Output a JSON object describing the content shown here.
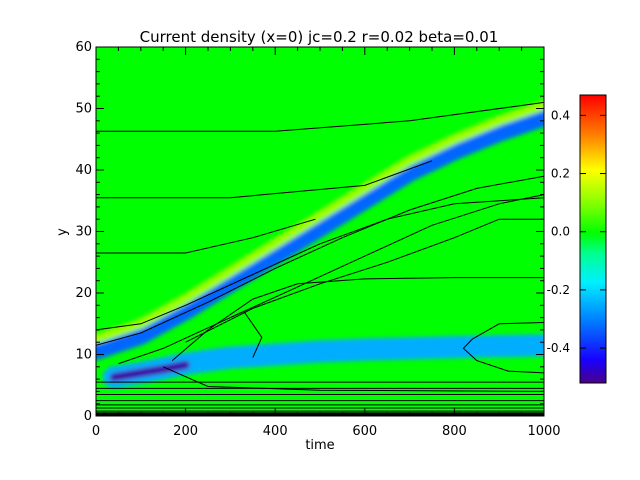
{
  "chart_data": {
    "type": "heatmap",
    "title": "Current density (x=0) jc=0.2 r=0.02 beta=0.01",
    "xlabel": "time",
    "ylabel": "y",
    "xlim": [
      0,
      1000
    ],
    "ylim": [
      0,
      60
    ],
    "x_ticks": [
      "0",
      "200",
      "400",
      "600",
      "800",
      "1000"
    ],
    "y_ticks": [
      "0",
      "10",
      "20",
      "30",
      "40",
      "50",
      "60"
    ],
    "colorbar": {
      "range": [
        -0.52,
        0.47
      ],
      "ticks": [
        "0.4",
        "0.2",
        "0.0",
        "-0.2",
        "-0.4"
      ],
      "tick_values": [
        0.4,
        0.2,
        0.0,
        -0.2,
        -0.4
      ],
      "colormap": "rainbow"
    },
    "background_value": 0.0,
    "features": [
      {
        "name": "diagonal current sheet",
        "path": [
          [
            0,
            10.5
          ],
          [
            100,
            13
          ],
          [
            200,
            17
          ],
          [
            300,
            21.5
          ],
          [
            400,
            26
          ],
          [
            500,
            30.5
          ],
          [
            600,
            35
          ],
          [
            700,
            39.5
          ],
          [
            800,
            43
          ],
          [
            900,
            46
          ],
          [
            1000,
            48.5
          ]
        ],
        "width": 1.4,
        "value": -0.33
      },
      {
        "name": "diagonal current sheet edge",
        "path": [
          [
            0,
            12.5
          ],
          [
            100,
            15
          ],
          [
            200,
            19
          ],
          [
            300,
            23.5
          ],
          [
            400,
            28
          ],
          [
            500,
            32.5
          ],
          [
            600,
            37
          ],
          [
            700,
            41.5
          ],
          [
            800,
            45
          ],
          [
            900,
            48
          ],
          [
            1000,
            50.5
          ]
        ],
        "width": 0.8,
        "value": 0.12
      },
      {
        "name": "lower current layer",
        "path": [
          [
            40,
            6.3
          ],
          [
            100,
            7
          ],
          [
            200,
            8.5
          ],
          [
            300,
            9.5
          ],
          [
            400,
            10
          ],
          [
            500,
            10.5
          ],
          [
            600,
            10.8
          ],
          [
            800,
            11.2
          ],
          [
            1000,
            11.5
          ]
        ],
        "width": 1.8,
        "value": -0.25
      },
      {
        "name": "intense lower core",
        "path": [
          [
            40,
            6.3
          ],
          [
            100,
            7
          ],
          [
            150,
            7.6
          ],
          [
            200,
            8.3
          ]
        ],
        "width": 0.7,
        "value": -0.5
      }
    ],
    "contour_levels_y_at_t1000": [
      0.3,
      0.8,
      1.3,
      1.8,
      2.5,
      3.5,
      4.5,
      5.5,
      15.2,
      22.5,
      32,
      41.5,
      50.5
    ],
    "contours": [
      [
        [
          0,
          46.3
        ],
        [
          400,
          46.3
        ],
        [
          700,
          48
        ],
        [
          1000,
          51
        ]
      ],
      [
        [
          0,
          35.5
        ],
        [
          300,
          35.5
        ],
        [
          600,
          37.5
        ],
        [
          750,
          41.5
        ]
      ],
      [
        [
          0,
          26.5
        ],
        [
          200,
          26.5
        ],
        [
          350,
          29
        ],
        [
          490,
          32
        ]
      ],
      [
        [
          0,
          14
        ],
        [
          100,
          15
        ],
        [
          200,
          18
        ],
        [
          350,
          23
        ],
        [
          500,
          28
        ],
        [
          650,
          32
        ],
        [
          800,
          34.5
        ],
        [
          1000,
          35.5
        ]
      ],
      [
        [
          0,
          11.5
        ],
        [
          100,
          13.5
        ],
        [
          250,
          18.5
        ],
        [
          400,
          24
        ],
        [
          550,
          29
        ],
        [
          700,
          33.5
        ],
        [
          850,
          37
        ],
        [
          1000,
          39
        ]
      ],
      [
        [
          50,
          8.5
        ],
        [
          150,
          11
        ],
        [
          300,
          16
        ],
        [
          450,
          21
        ],
        [
          600,
          26
        ],
        [
          750,
          31
        ],
        [
          900,
          34.5
        ],
        [
          1000,
          36
        ]
      ],
      [
        [
          200,
          12
        ],
        [
          350,
          17.5
        ],
        [
          500,
          21.5
        ],
        [
          650,
          25
        ],
        [
          800,
          29
        ],
        [
          900,
          32
        ],
        [
          1000,
          32
        ]
      ],
      [
        [
          170,
          9
        ],
        [
          250,
          14
        ],
        [
          350,
          19
        ],
        [
          450,
          21.5
        ],
        [
          600,
          22.3
        ],
        [
          800,
          22.5
        ],
        [
          1000,
          22.5
        ]
      ],
      [
        [
          150,
          8
        ],
        [
          250,
          4.8
        ],
        [
          500,
          4.2
        ],
        [
          1000,
          4
        ]
      ],
      [
        [
          350,
          9.5
        ],
        [
          370,
          12.8
        ],
        [
          330,
          17
        ],
        [
          300,
          16
        ]
      ],
      [
        [
          1000,
          15.2
        ],
        [
          900,
          15
        ],
        [
          840,
          12.5
        ],
        [
          820,
          11
        ],
        [
          850,
          9
        ],
        [
          920,
          7.3
        ],
        [
          1000,
          7
        ]
      ]
    ]
  }
}
